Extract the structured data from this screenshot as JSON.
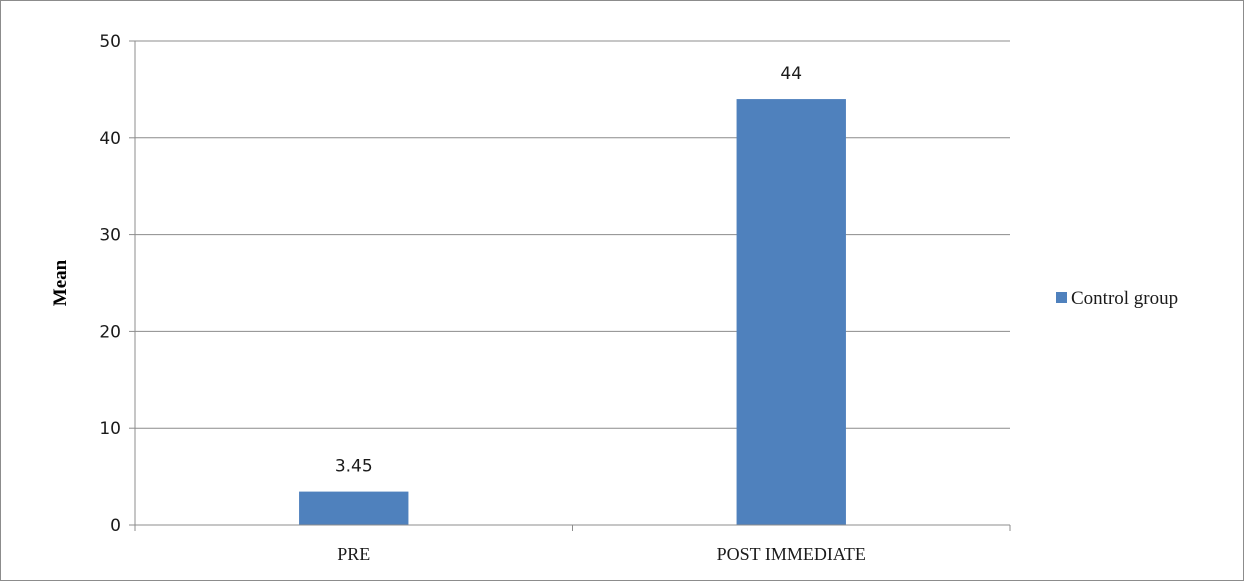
{
  "chart_data": {
    "type": "bar",
    "categories": [
      "PRE",
      "POST IMMEDIATE"
    ],
    "series": [
      {
        "name": "Control group",
        "values": [
          3.45,
          44
        ],
        "data_labels": [
          "3.45",
          "44"
        ],
        "color": "#4f81bd"
      }
    ],
    "xlabel": "",
    "ylabel": "Mean",
    "ylim": [
      0,
      50
    ],
    "yticks": [
      0,
      10,
      20,
      30,
      40,
      50
    ],
    "grid": true,
    "legend_position": "right"
  }
}
